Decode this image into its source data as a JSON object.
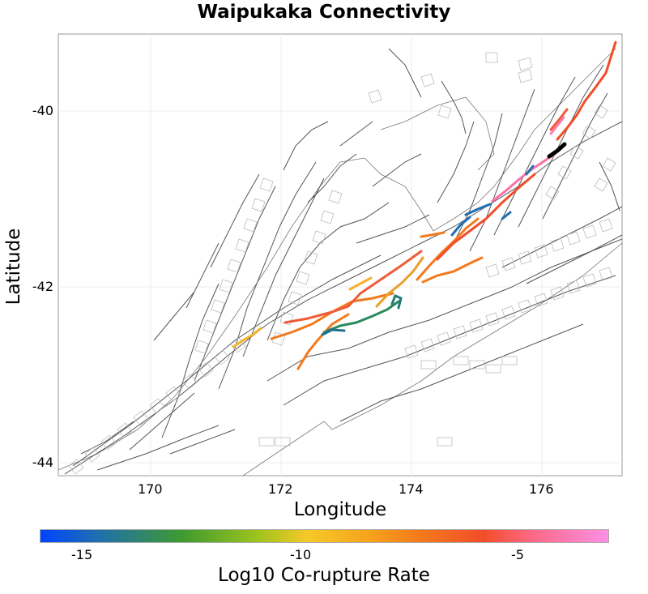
{
  "title": "Waipukaka Connectivity",
  "axes": {
    "xlabel": "Longitude",
    "ylabel": "Latitude",
    "xlim": [
      168.7,
      177.2
    ],
    "ylim": [
      -44.15,
      -39.05
    ],
    "xticks": [
      "170",
      "172",
      "174",
      "176"
    ],
    "yticks": [
      "-40",
      "-42",
      "-44"
    ]
  },
  "colorbar": {
    "label": "Log10 Co-rupture Rate",
    "ticks": [
      "-15",
      "-10",
      "-5"
    ],
    "range": [
      -18,
      -5
    ],
    "colors": [
      "#0044ff",
      "#1f6fb0",
      "#3f9a2f",
      "#f5c928",
      "#f3791c",
      "#f24d2a",
      "#ff8fe6"
    ]
  },
  "highlight": {
    "target_color": "#000000"
  }
}
